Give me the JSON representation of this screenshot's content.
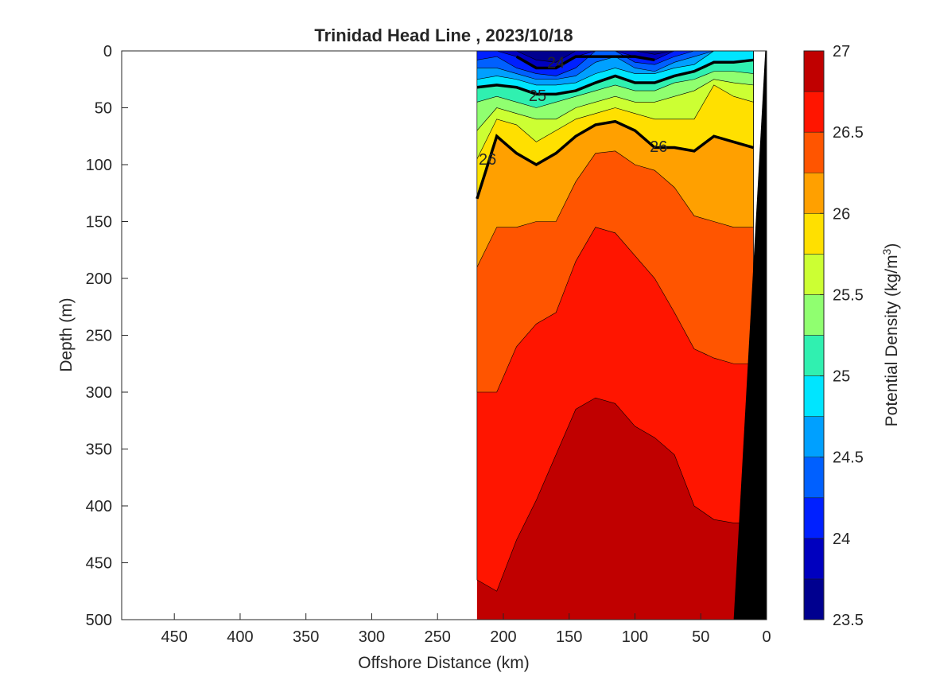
{
  "chart_data": {
    "type": "heatmap",
    "title": "Trinidad Head Line , 2023/10/18",
    "xlabel": "Offshore Distance (km)",
    "ylabel": "Depth (m)",
    "colorbar_label": "Potential Density (kg/m",
    "colorbar_label_superscript": "3",
    "colorbar_label_suffix": ")",
    "xlim": [
      490,
      0
    ],
    "ylim": [
      500,
      0
    ],
    "x_reversed": true,
    "y_reversed": true,
    "x_ticks": [
      450,
      400,
      350,
      300,
      250,
      200,
      150,
      100,
      50,
      0
    ],
    "y_ticks": [
      0,
      50,
      100,
      150,
      200,
      250,
      300,
      350,
      400,
      450,
      500
    ],
    "colorbar_range": [
      23.5,
      27
    ],
    "colorbar_ticks": [
      23.5,
      24,
      24.5,
      25,
      25.5,
      26,
      26.5,
      27
    ],
    "color_levels": [
      {
        "from": 23.5,
        "to": 23.75,
        "color": "#00008f"
      },
      {
        "from": 23.75,
        "to": 24.0,
        "color": "#0000bf"
      },
      {
        "from": 24.0,
        "to": 24.25,
        "color": "#0020ff"
      },
      {
        "from": 24.25,
        "to": 24.5,
        "color": "#0060ff"
      },
      {
        "from": 24.5,
        "to": 24.75,
        "color": "#00a0ff"
      },
      {
        "from": 24.75,
        "to": 25.0,
        "color": "#00e5ff"
      },
      {
        "from": 25.0,
        "to": 25.25,
        "color": "#30f0b0"
      },
      {
        "from": 25.25,
        "to": 25.5,
        "color": "#90ff70"
      },
      {
        "from": 25.5,
        "to": 25.75,
        "color": "#ccff33"
      },
      {
        "from": 25.75,
        "to": 26.0,
        "color": "#ffe000"
      },
      {
        "from": 26.0,
        "to": 26.25,
        "color": "#ffa000"
      },
      {
        "from": 26.25,
        "to": 26.5,
        "color": "#ff5500"
      },
      {
        "from": 26.5,
        "to": 26.75,
        "color": "#ff1500"
      },
      {
        "from": 26.75,
        "to": 27.0,
        "color": "#c00000"
      }
    ],
    "contour_labels": [
      {
        "value": "24",
        "x": 160,
        "y": 10
      },
      {
        "value": "25",
        "x": 174,
        "y": 39
      },
      {
        "value": "26",
        "x": 212,
        "y": 95
      },
      {
        "value": "26",
        "x": 82,
        "y": 84
      }
    ],
    "sections": {
      "x": [
        220,
        205,
        190,
        175,
        160,
        145,
        130,
        115,
        100,
        85,
        70,
        55,
        40,
        25,
        10
      ],
      "boundaries": [
        {
          "level": 26.75,
          "depth": [
            465,
            475,
            430,
            395,
            355,
            315,
            305,
            310,
            330,
            340,
            355,
            400,
            412,
            415,
            415
          ]
        },
        {
          "level": 26.5,
          "depth": [
            300,
            300,
            260,
            240,
            230,
            185,
            155,
            160,
            180,
            200,
            230,
            262,
            270,
            275,
            275
          ]
        },
        {
          "level": 26.25,
          "depth": [
            190,
            155,
            155,
            150,
            150,
            115,
            90,
            88,
            100,
            105,
            120,
            145,
            150,
            155,
            155
          ]
        },
        {
          "level": 26.0,
          "depth": [
            130,
            75,
            90,
            100,
            90,
            75,
            65,
            62,
            70,
            85,
            85,
            88,
            75,
            80,
            85
          ]
        },
        {
          "level": 25.75,
          "depth": [
            95,
            60,
            65,
            80,
            70,
            60,
            55,
            50,
            55,
            60,
            60,
            60,
            30,
            40,
            45
          ]
        },
        {
          "level": 25.5,
          "depth": [
            70,
            50,
            55,
            60,
            60,
            50,
            45,
            40,
            45,
            45,
            40,
            35,
            25,
            28,
            30
          ]
        },
        {
          "level": 25.25,
          "depth": [
            45,
            40,
            45,
            50,
            45,
            40,
            35,
            30,
            35,
            35,
            28,
            25,
            18,
            18,
            20
          ]
        },
        {
          "level": 25.0,
          "depth": [
            32,
            30,
            32,
            38,
            38,
            35,
            28,
            22,
            28,
            28,
            22,
            18,
            10,
            10,
            8
          ]
        },
        {
          "level": 24.75,
          "depth": [
            25,
            22,
            25,
            30,
            30,
            28,
            20,
            15,
            20,
            20,
            15,
            12,
            0,
            0,
            0
          ]
        },
        {
          "level": 24.5,
          "depth": [
            15,
            15,
            20,
            25,
            25,
            22,
            10,
            5,
            15,
            18,
            10,
            5,
            0,
            0,
            0
          ]
        },
        {
          "level": 24.25,
          "depth": [
            8,
            5,
            15,
            20,
            22,
            15,
            0,
            0,
            10,
            12,
            5,
            0,
            0,
            0,
            0
          ]
        },
        {
          "level": 24.0,
          "depth": [
            0,
            0,
            5,
            15,
            15,
            5,
            0,
            0,
            5,
            8,
            0,
            0,
            0,
            0,
            0
          ]
        },
        {
          "level": 23.75,
          "depth": [
            0,
            0,
            0,
            8,
            10,
            0,
            0,
            0,
            0,
            3,
            0,
            0,
            0,
            0,
            0
          ]
        }
      ]
    }
  }
}
